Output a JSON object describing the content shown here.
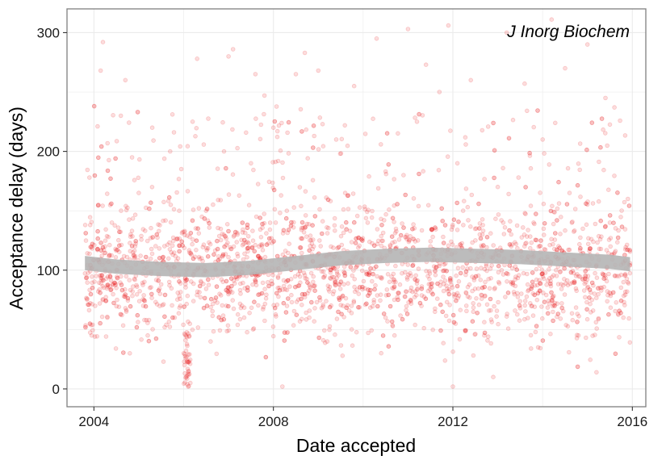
{
  "chart_data": {
    "type": "scatter",
    "title": "",
    "annotation": "J Inorg Biochem",
    "xlabel": "Date accepted",
    "ylabel": "Acceptance delay (days)",
    "xlim": [
      2003.4,
      2016.3
    ],
    "ylim": [
      -15,
      320
    ],
    "x_ticks": [
      2004,
      2008,
      2012,
      2016
    ],
    "x_tick_labels": [
      "2004",
      "2008",
      "2012",
      "2016"
    ],
    "y_ticks": [
      0,
      100,
      200,
      300
    ],
    "y_tick_labels": [
      "0",
      "100",
      "200",
      "300"
    ],
    "grid": true,
    "colors": {
      "points": "#e8181e",
      "smooth_band": "#b5b5b5",
      "frame": "#7f7f7f",
      "grid": "#ebebeb"
    },
    "point_opacity": 0.15,
    "smooth": {
      "x": [
        2003.8,
        2004.5,
        2005.5,
        2006.5,
        2007.5,
        2008.5,
        2009.5,
        2010.5,
        2011.5,
        2012.5,
        2013.5,
        2014.5,
        2015.5,
        2015.95
      ],
      "y": [
        106,
        103,
        101,
        100,
        102,
        106,
        110,
        112,
        113,
        112,
        111,
        109,
        107,
        105
      ],
      "band_halfwidth": 6
    },
    "sample_points": [
      [
        2003.85,
        76
      ],
      [
        2003.9,
        178
      ],
      [
        2003.95,
        45
      ],
      [
        2004.05,
        95
      ],
      [
        2004.1,
        155
      ],
      [
        2004.15,
        268
      ],
      [
        2004.2,
        292
      ],
      [
        2004.25,
        120
      ],
      [
        2004.3,
        60
      ],
      [
        2004.4,
        140
      ],
      [
        2004.5,
        85
      ],
      [
        2004.6,
        230
      ],
      [
        2004.7,
        260
      ],
      [
        2004.8,
        30
      ],
      [
        2004.85,
        195
      ],
      [
        2004.9,
        110
      ],
      [
        2005.0,
        165
      ],
      [
        2005.1,
        70
      ],
      [
        2005.2,
        45
      ],
      [
        2005.3,
        220
      ],
      [
        2005.4,
        130
      ],
      [
        2005.5,
        88
      ],
      [
        2005.55,
        23
      ],
      [
        2005.7,
        200
      ],
      [
        2005.8,
        60
      ],
      [
        2005.9,
        150
      ],
      [
        2006.0,
        30
      ],
      [
        2006.02,
        20
      ],
      [
        2006.05,
        10
      ],
      [
        2006.1,
        2
      ],
      [
        2006.15,
        5
      ],
      [
        2006.2,
        225
      ],
      [
        2006.3,
        278
      ],
      [
        2006.4,
        110
      ],
      [
        2006.5,
        150
      ],
      [
        2006.6,
        40
      ],
      [
        2006.8,
        80
      ],
      [
        2006.9,
        200
      ],
      [
        2007.0,
        280
      ],
      [
        2007.1,
        286
      ],
      [
        2007.2,
        130
      ],
      [
        2007.3,
        70
      ],
      [
        2007.35,
        60
      ],
      [
        2007.4,
        95
      ],
      [
        2007.5,
        190
      ],
      [
        2007.6,
        265
      ],
      [
        2007.8,
        247
      ],
      [
        2007.9,
        100
      ],
      [
        2008.0,
        220
      ],
      [
        2008.05,
        140
      ],
      [
        2008.1,
        85
      ],
      [
        2008.2,
        2
      ],
      [
        2008.3,
        150
      ],
      [
        2008.5,
        265
      ],
      [
        2008.7,
        283
      ],
      [
        2008.8,
        60
      ],
      [
        2008.9,
        120
      ],
      [
        2009.0,
        268
      ],
      [
        2009.2,
        40
      ],
      [
        2009.4,
        210
      ],
      [
        2009.5,
        90
      ],
      [
        2009.6,
        165
      ],
      [
        2009.8,
        255
      ],
      [
        2009.9,
        80
      ],
      [
        2010.1,
        140
      ],
      [
        2010.3,
        295
      ],
      [
        2010.5,
        60
      ],
      [
        2010.7,
        45
      ],
      [
        2010.9,
        180
      ],
      [
        2011.0,
        303
      ],
      [
        2011.2,
        225
      ],
      [
        2011.4,
        273
      ],
      [
        2011.5,
        120
      ],
      [
        2011.6,
        65
      ],
      [
        2011.7,
        250
      ],
      [
        2011.9,
        306
      ],
      [
        2012.0,
        2
      ],
      [
        2012.1,
        190
      ],
      [
        2012.3,
        70
      ],
      [
        2012.4,
        260
      ],
      [
        2012.6,
        130
      ],
      [
        2012.7,
        45
      ],
      [
        2012.9,
        10
      ],
      [
        2013.0,
        170
      ],
      [
        2013.2,
        300
      ],
      [
        2013.3,
        120
      ],
      [
        2013.5,
        68
      ],
      [
        2013.6,
        257
      ],
      [
        2013.8,
        140
      ],
      [
        2013.9,
        35
      ],
      [
        2014.0,
        210
      ],
      [
        2014.2,
        311
      ],
      [
        2014.3,
        100
      ],
      [
        2014.5,
        270
      ],
      [
        2014.6,
        165
      ],
      [
        2014.8,
        45
      ],
      [
        2015.0,
        290
      ],
      [
        2015.1,
        75
      ],
      [
        2015.2,
        14
      ],
      [
        2015.4,
        245
      ],
      [
        2015.5,
        140
      ],
      [
        2015.6,
        237
      ],
      [
        2015.7,
        95
      ],
      [
        2015.8,
        60
      ],
      [
        2015.9,
        160
      ]
    ],
    "generated_cloud": {
      "x_range": [
        2003.8,
        2015.95
      ],
      "typical_range": [
        40,
        160
      ],
      "count": 2500,
      "note": "visual density of remaining points"
    }
  }
}
